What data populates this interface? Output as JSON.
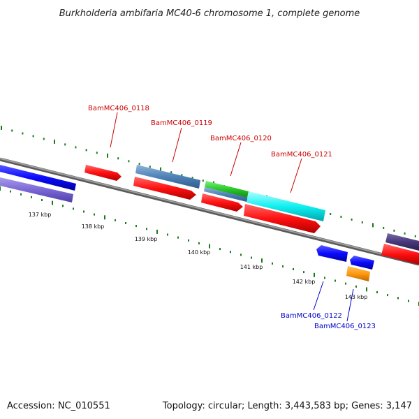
{
  "title": "Burkholderia ambifaria MC40-6 chromosome 1, complete genome",
  "accession": "Accession: NC_010551",
  "summary": "Topology: circular; Length: 3,443,583 bp; Genes: 3,147",
  "colors": {
    "backbone": "#808080",
    "tick": "#1a7a1a",
    "label_top": "#cc0000",
    "label_bottom": "#0000cc"
  },
  "kbp_labels": [
    "137 kbp",
    "138 kbp",
    "139 kbp",
    "140 kbp",
    "141 kbp",
    "142 kbp",
    "143 kbp"
  ],
  "gene_labels_top": [
    "BamMC406_0118",
    "BamMC406_0119",
    "BamMC406_0120",
    "BamMC406_0121"
  ],
  "gene_labels_bottom": [
    "BamMC406_0122",
    "BamMC406_0123"
  ]
}
